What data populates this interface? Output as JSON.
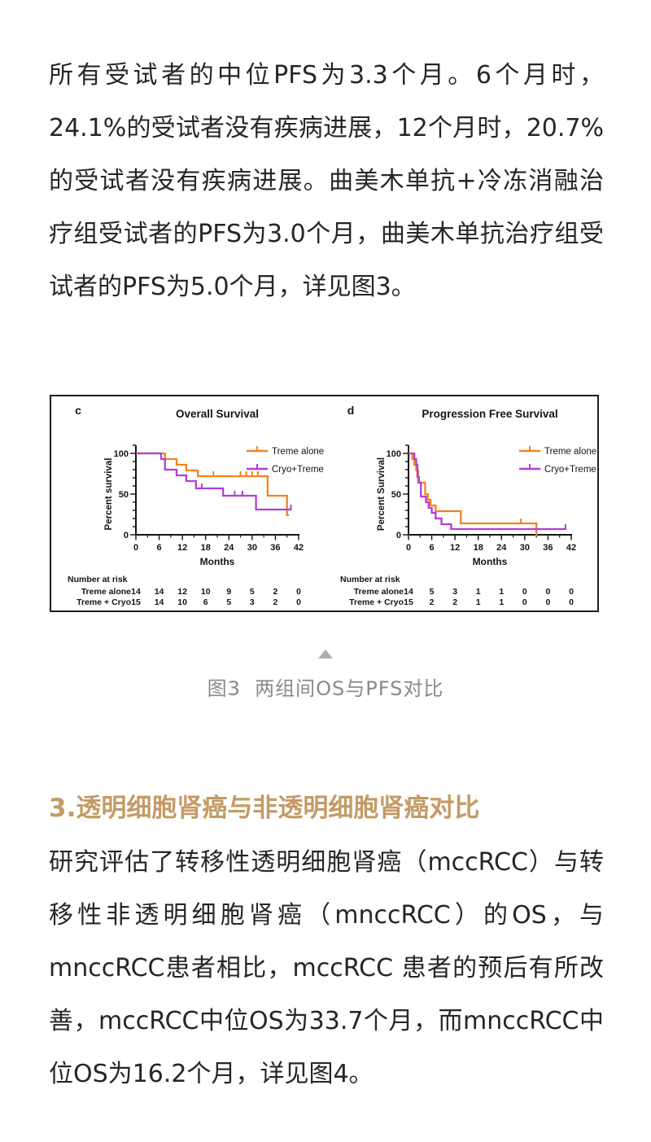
{
  "page": {
    "background": "#ffffff"
  },
  "article": {
    "paragraph_1": "所有受试者的中位PFS为3.3个月。6个月时，24.1%的受试者没有疾病进展，12个月时，20.7%的受试者没有疾病进展。曲美木单抗+冷冻消融治疗组受试者的PFS为3.0个月，曲美木单抗治疗组受试者的PFS为5.0个月，详见图3。",
    "figure_caption": "图3  两组间OS与PFS对比",
    "section_heading": "3.透明细胞肾癌与非透明细胞肾癌对比",
    "paragraph_2": "研究评估了转移性透明细胞肾癌（mccRCC）与转移性非透明细胞肾癌（mnccRCC）的OS，与mnccRCC患者相比，mccRCC 患者的预后有所改善，mccRCC中位OS为33.7个月，而mnccRCC中位OS为16.2个月，详见图4。",
    "colors": {
      "heading": "#c49a66",
      "caption": "#8a8a8a",
      "body_text": "#262626",
      "collapse_icon": "#aeaeae"
    }
  },
  "chart_data": [
    {
      "type": "line",
      "chart_kind": "kaplan_meier_step",
      "panel_label": "c",
      "title": "Overall Survival",
      "xlabel": "Months",
      "ylabel": "Percent survival",
      "xlim": [
        0,
        42
      ],
      "ylim": [
        0,
        110
      ],
      "xticks": [
        0,
        6,
        12,
        18,
        24,
        30,
        36,
        42
      ],
      "yticks": [
        0,
        50,
        100
      ],
      "grid": false,
      "legend_position": "upper-right-inside",
      "series": [
        {
          "name": "Treme alone",
          "color": "#F58220",
          "start": [
            0,
            100
          ],
          "drops": [
            [
              7.5,
              93
            ],
            [
              10.5,
              86
            ],
            [
              13,
              79
            ],
            [
              16,
              72
            ],
            [
              34,
              48
            ],
            [
              39,
              24
            ]
          ],
          "end_x": 39.5,
          "censor_marks": [
            [
              20,
              72
            ],
            [
              27,
              72
            ],
            [
              28.5,
              72
            ],
            [
              30,
              72
            ],
            [
              31.5,
              72
            ]
          ]
        },
        {
          "name": "Cryo+Treme",
          "color": "#B13FD8",
          "start": [
            0,
            100
          ],
          "drops": [
            [
              6.5,
              93
            ],
            [
              7.5,
              80
            ],
            [
              10.5,
              73
            ],
            [
              13,
              66
            ],
            [
              15.5,
              57
            ],
            [
              22.5,
              48
            ],
            [
              31,
              31
            ]
          ],
          "end_x": 40,
          "censor_marks": [
            [
              17,
              57
            ],
            [
              25.5,
              48
            ],
            [
              27.5,
              48
            ],
            [
              40,
              31
            ]
          ]
        }
      ],
      "number_at_risk": {
        "label": "Number at risk",
        "rows": [
          {
            "name": "Treme alone",
            "values": [
              "14",
              "14",
              "12",
              "10",
              "9",
              "5",
              "2",
              "0"
            ]
          },
          {
            "name": "Treme + Cryo",
            "values": [
              "15",
              "14",
              "10",
              "6",
              "5",
              "3",
              "2",
              "0"
            ]
          }
        ]
      }
    },
    {
      "type": "line",
      "chart_kind": "kaplan_meier_step",
      "panel_label": "d",
      "title": "Progression Free Survival",
      "xlabel": "Months",
      "ylabel": "Percent Survival",
      "xlim": [
        0,
        42
      ],
      "ylim": [
        0,
        110
      ],
      "xticks": [
        0,
        6,
        12,
        18,
        24,
        30,
        36,
        42
      ],
      "yticks": [
        0,
        50,
        100
      ],
      "grid": false,
      "legend_position": "upper-right-inside",
      "series": [
        {
          "name": "Treme alone",
          "color": "#F58220",
          "start": [
            0,
            100
          ],
          "drops": [
            [
              1,
              93
            ],
            [
              1.5,
              86
            ],
            [
              2,
              79
            ],
            [
              2.5,
              64
            ],
            [
              4.3,
              50
            ],
            [
              5,
              43
            ],
            [
              5.7,
              36
            ],
            [
              7,
              29
            ],
            [
              13.5,
              14
            ],
            [
              33,
              0
            ]
          ],
          "end_x": 33.2,
          "censor_marks": [
            [
              29,
              14
            ]
          ]
        },
        {
          "name": "Cryo+Treme",
          "color": "#B13FD8",
          "start": [
            0,
            100
          ],
          "drops": [
            [
              1.5,
              93
            ],
            [
              2,
              86
            ],
            [
              2.3,
              71
            ],
            [
              2.7,
              64
            ],
            [
              3.2,
              47
            ],
            [
              4.5,
              40
            ],
            [
              5.2,
              33
            ],
            [
              6,
              27
            ],
            [
              7,
              20
            ],
            [
              8.5,
              13
            ],
            [
              11,
              7
            ]
          ],
          "end_x": 40.5,
          "censor_marks": [
            [
              40.5,
              7
            ]
          ]
        }
      ],
      "number_at_risk": {
        "label": "Number at risk",
        "rows": [
          {
            "name": "Treme alone",
            "values": [
              "14",
              "5",
              "3",
              "1",
              "1",
              "0",
              "0",
              "0"
            ]
          },
          {
            "name": "Treme + Cryo",
            "values": [
              "15",
              "2",
              "2",
              "1",
              "1",
              "0",
              "0",
              "0"
            ]
          }
        ]
      }
    }
  ]
}
